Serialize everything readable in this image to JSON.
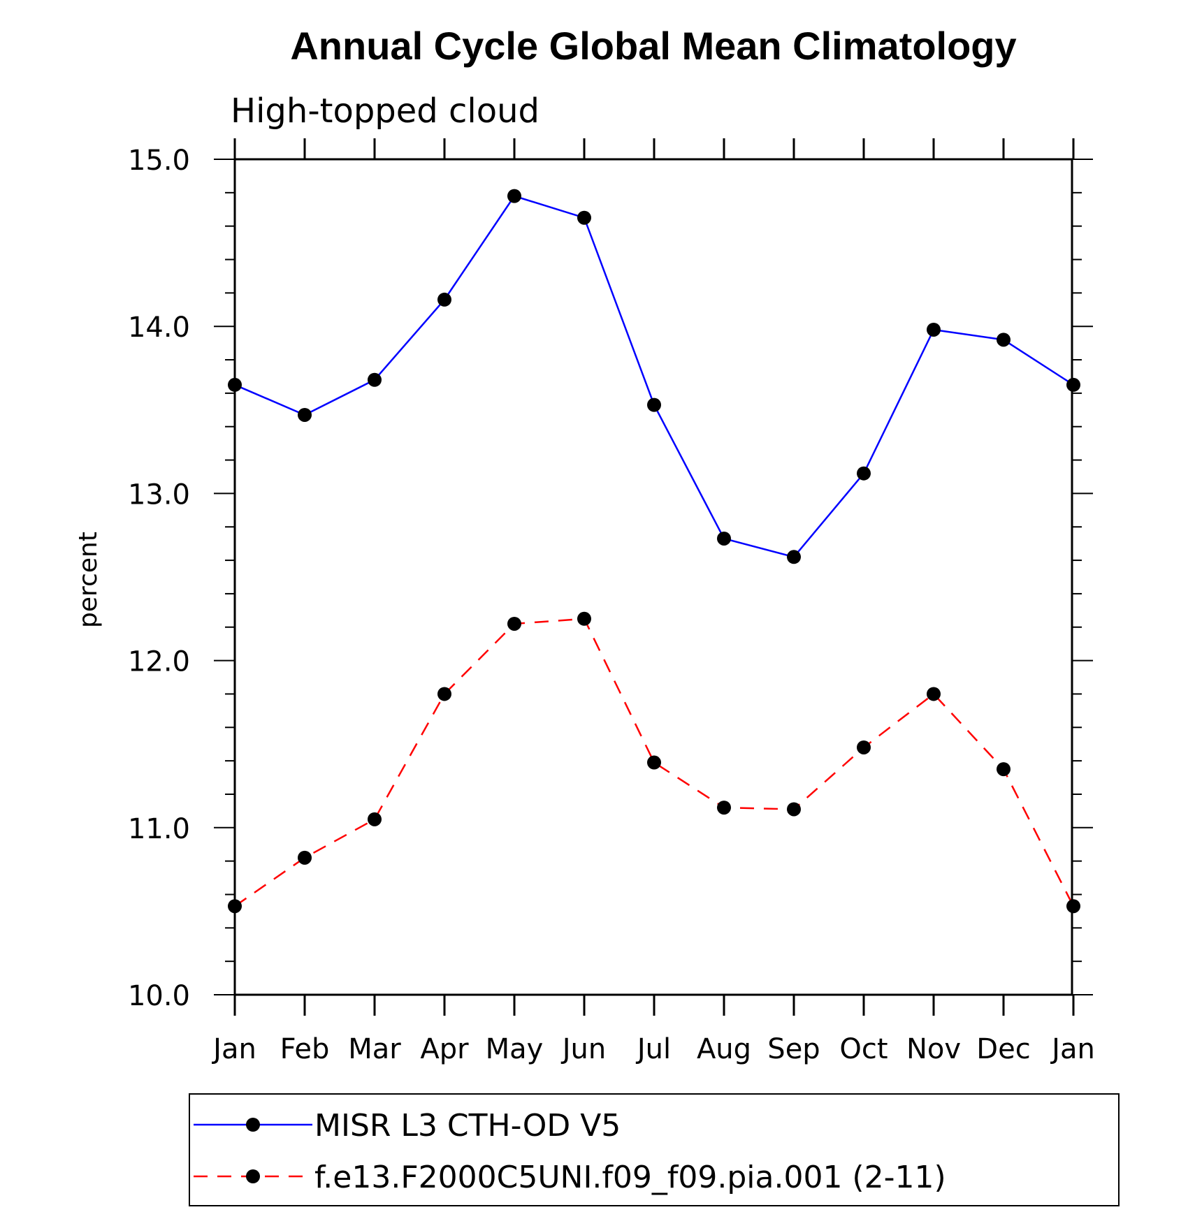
{
  "chart_data": {
    "type": "line",
    "title": "Annual Cycle Global Mean Climatology",
    "subtitle": "High-topped cloud",
    "xlabel": "",
    "ylabel": "percent",
    "categories": [
      "Jan",
      "Feb",
      "Mar",
      "Apr",
      "May",
      "Jun",
      "Jul",
      "Aug",
      "Sep",
      "Oct",
      "Nov",
      "Dec",
      "Jan"
    ],
    "ylim": [
      10.0,
      15.0
    ],
    "yticks": [
      "10.0",
      "11.0",
      "12.0",
      "13.0",
      "14.0",
      "15.0"
    ],
    "grid": false,
    "legend_position": "bottom",
    "series": [
      {
        "name": "MISR L3 CTH-OD V5",
        "color": "#0000ff",
        "dash": "solid",
        "values": [
          13.65,
          13.47,
          13.68,
          14.16,
          14.78,
          14.65,
          13.53,
          12.73,
          12.62,
          13.12,
          13.98,
          13.92,
          13.65
        ]
      },
      {
        "name": "f.e13.F2000C5UNI.f09_f09.pia.001 (2-11)",
        "color": "#ff0000",
        "dash": "dashed",
        "values": [
          10.53,
          10.82,
          11.05,
          11.8,
          12.22,
          12.25,
          11.39,
          11.12,
          11.11,
          11.48,
          11.8,
          11.35,
          10.53
        ]
      }
    ]
  }
}
